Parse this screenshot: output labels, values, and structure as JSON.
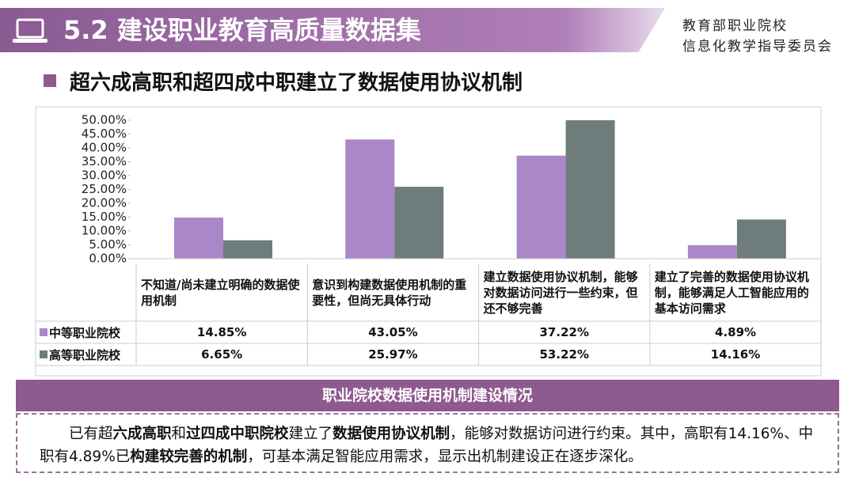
{
  "header": {
    "title": "5.2 建设职业教育高质量数据集",
    "org": [
      "教育部职业院校",
      "信息化教学指导委员会"
    ]
  },
  "subtitle": "超六成高职和超四成中职建立了数据使用协议机制",
  "chart_data": {
    "type": "bar",
    "categories": [
      "不知道/尚未建立明确的数据使用机制",
      "意识到构建数据使用机制的重要性，但尚无具体行动",
      "建立数据使用协议机制，能够对数据访问进行一些约束，但还不够完善",
      "建立了完善的数据使用协议机制，能够满足人工智能应用的基本访问需求"
    ],
    "series": [
      {
        "name": "中等职业院校",
        "color": "#a987c9",
        "values": [
          14.85,
          43.05,
          37.22,
          4.89
        ],
        "value_labels": [
          "14.85%",
          "43.05%",
          "37.22%",
          "4.89%"
        ]
      },
      {
        "name": "高等职业院校",
        "color": "#6e7d7c",
        "values": [
          6.65,
          25.97,
          53.22,
          14.16
        ],
        "value_labels": [
          "6.65%",
          "25.97%",
          "53.22%",
          "14.16%"
        ]
      }
    ],
    "ylim": [
      0,
      50
    ],
    "yticks": [
      {
        "value": 0,
        "label": "0.00%"
      },
      {
        "value": 5,
        "label": "5.00%"
      },
      {
        "value": 10,
        "label": "10.00%"
      },
      {
        "value": 15,
        "label": "15.00%"
      },
      {
        "value": 20,
        "label": "20.00%"
      },
      {
        "value": 25,
        "label": "25.00%"
      },
      {
        "value": 30,
        "label": "30.00%"
      },
      {
        "value": 35,
        "label": "35.00%"
      },
      {
        "value": 40,
        "label": "40.00%"
      },
      {
        "value": 45,
        "label": "45.00%"
      },
      {
        "value": 50,
        "label": "50.00%"
      }
    ]
  },
  "summary": {
    "title": "职业院校数据使用机制建设情况",
    "runs": [
      {
        "text": "已有超",
        "bold": false
      },
      {
        "text": "六成高职",
        "bold": true
      },
      {
        "text": "和",
        "bold": false
      },
      {
        "text": "过四成中职院校",
        "bold": true
      },
      {
        "text": "建立了",
        "bold": false
      },
      {
        "text": "数据使用协议机制",
        "bold": true
      },
      {
        "text": "，能够对数据访问进行约束。其中，高职有14.16%、中职有4.89%已",
        "bold": false
      },
      {
        "text": "构建较完善的机制",
        "bold": true
      },
      {
        "text": "，可基本满足智能应用需求，显示出机制建设正在逐步深化。",
        "bold": false
      }
    ]
  }
}
